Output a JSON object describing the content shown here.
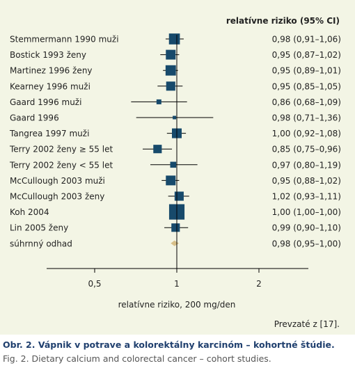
{
  "chart_data": {
    "type": "forest",
    "column_header": "relatívne riziko (95% CI)",
    "xlabel": "relatívne riziko, 200 mg/den",
    "x_ticks": [
      0.5,
      1,
      2
    ],
    "x_tick_labels": [
      "0,5",
      "1",
      "2"
    ],
    "reference_line": 1,
    "studies": [
      {
        "label": "Stemmermann 1990 muži",
        "rr": 0.98,
        "ci": [
          0.91,
          1.06
        ],
        "text": "0,98 (0,91–1,06)",
        "weight": 5
      },
      {
        "label": "Bostick 1993 ženy",
        "rr": 0.95,
        "ci": [
          0.87,
          1.02
        ],
        "text": "0,95 (0,87–1,02)",
        "weight": 4
      },
      {
        "label": "Martinez 1996 ženy",
        "rr": 0.95,
        "ci": [
          0.89,
          1.01
        ],
        "text": "0,95 (0,89–1,01)",
        "weight": 4.5
      },
      {
        "label": "Kearney 1996 muži",
        "rr": 0.95,
        "ci": [
          0.85,
          1.05
        ],
        "text": "0,95 (0,85–1,05)",
        "weight": 3.5
      },
      {
        "label": "Gaard 1996 muži",
        "rr": 0.86,
        "ci": [
          0.68,
          1.09
        ],
        "text": "0,86 (0,68–1,09)",
        "weight": 1
      },
      {
        "label": "Gaard 1996",
        "rr": 0.98,
        "ci": [
          0.71,
          1.36
        ],
        "text": "0,98 (0,71–1,36)",
        "weight": 0.5
      },
      {
        "label": "Tangrea 1997 muži",
        "rr": 1.0,
        "ci": [
          0.92,
          1.08
        ],
        "text": "1,00 (0,92–1,08)",
        "weight": 4
      },
      {
        "label": "Terry 2002 ženy ≥ 55 let",
        "rr": 0.85,
        "ci": [
          0.75,
          0.96
        ],
        "text": "0,85 (0,75–0,96)",
        "weight": 3
      },
      {
        "label": "Terry 2002 ženy < 55 let",
        "rr": 0.97,
        "ci": [
          0.8,
          1.19
        ],
        "text": "0,97 (0,80–1,19)",
        "weight": 1.5
      },
      {
        "label": "McCullough 2003 muži",
        "rr": 0.95,
        "ci": [
          0.88,
          1.02
        ],
        "text": "0,95 (0,88–1,02)",
        "weight": 4
      },
      {
        "label": "McCullough 2003 ženy",
        "rr": 1.02,
        "ci": [
          0.93,
          1.11
        ],
        "text": "1,02 (0,93–1,11)",
        "weight": 3.5
      },
      {
        "label": "Koh 2004",
        "rr": 1.0,
        "ci": [
          1.0,
          1.0
        ],
        "text": "1,00 (1,00–1,00)",
        "weight": 10
      },
      {
        "label": "Lin 2005 ženy",
        "rr": 0.99,
        "ci": [
          0.9,
          1.1
        ],
        "text": "0,99 (0,90–1,10)",
        "weight": 3
      }
    ],
    "summary": {
      "label": "súhrnný odhad",
      "rr": 0.98,
      "ci": [
        0.95,
        1.0
      ],
      "text": "0,98 (0,95–1,00)"
    },
    "source": "Prevzaté z [17].",
    "colors": {
      "marker": "#174a6b",
      "summary": "#d8c089",
      "panel": "#f3f5e5",
      "axis": "#000000"
    }
  },
  "caption": {
    "title": "Obr. 2. Vápnik v potrave a kolorektálny karcinóm – kohortné štúdie.",
    "subtitle": "Fig. 2. Dietary calcium and colorectal cancer – cohort studies."
  }
}
